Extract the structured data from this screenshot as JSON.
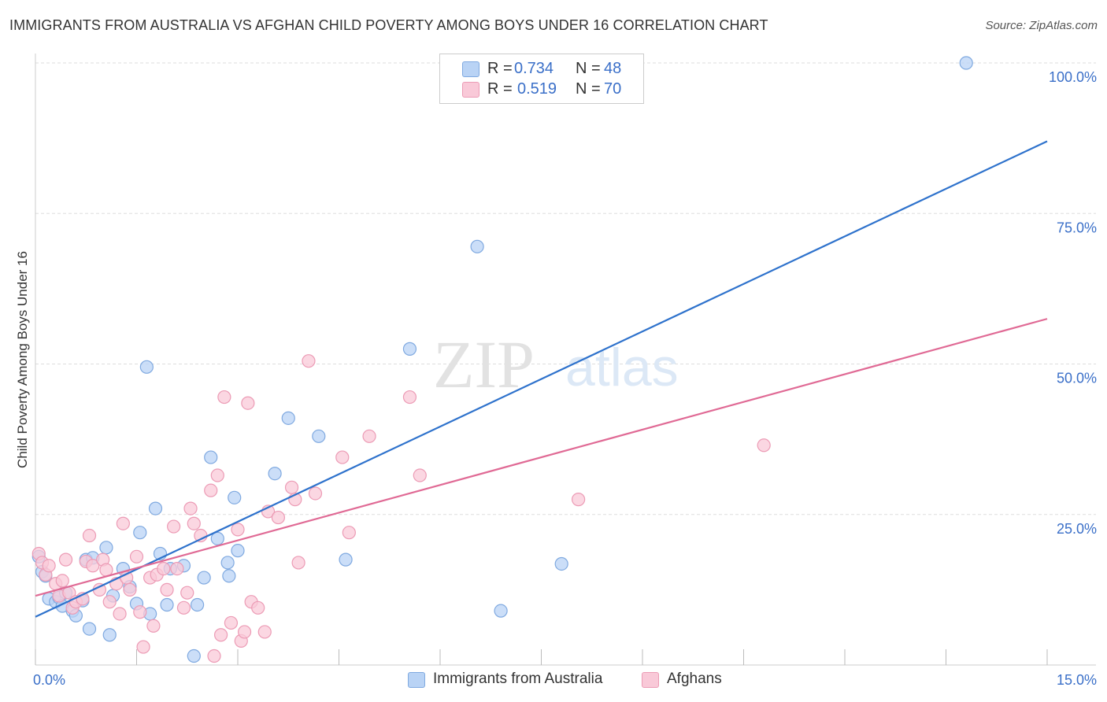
{
  "title": "IMMIGRANTS FROM AUSTRALIA VS AFGHAN CHILD POVERTY AMONG BOYS UNDER 16 CORRELATION CHART",
  "source": "Source: ZipAtlas.com",
  "watermark": {
    "zip": "ZIP",
    "atlas": "atlas"
  },
  "colors": {
    "blue_fill": "#b9d3f5",
    "blue_stroke": "#7fa9e0",
    "blue_line": "#2e72cc",
    "pink_fill": "#f9c9d8",
    "pink_stroke": "#ec9bb5",
    "pink_line": "#e06a95",
    "tick_label": "#3a6fc8",
    "grid": "#dddddd"
  },
  "legend": {
    "blue": {
      "r_label": "R = ",
      "r_value": "0.734",
      "n_label": "N = ",
      "n_value": "48"
    },
    "pink": {
      "r_label": "R = ",
      "r_value": "0.519",
      "n_label": "N = ",
      "n_value": "70"
    }
  },
  "chart_data": {
    "type": "scatter",
    "title": "IMMIGRANTS FROM AUSTRALIA VS AFGHAN CHILD POVERTY AMONG BOYS UNDER 16 CORRELATION CHART",
    "xlabel": "",
    "ylabel": "Child Poverty Among Boys Under 16",
    "xlim": [
      0,
      15
    ],
    "ylim": [
      0,
      100
    ],
    "x_tick_labels": [
      "0.0%",
      "15.0%"
    ],
    "y_tick_labels": [
      "25.0%",
      "50.0%",
      "75.0%",
      "100.0%"
    ],
    "y_ticks": [
      25,
      50,
      75,
      100
    ],
    "grid": true,
    "legend_position": "top-center",
    "series": [
      {
        "name": "Immigrants from Australia",
        "color": "blue",
        "trend": {
          "x": [
            0,
            15
          ],
          "y": [
            8.0,
            87.0
          ]
        },
        "points": [
          [
            0.05,
            18.0
          ],
          [
            0.1,
            15.5
          ],
          [
            0.15,
            14.8
          ],
          [
            0.2,
            11.0
          ],
          [
            0.3,
            10.5
          ],
          [
            0.35,
            11.2
          ],
          [
            0.4,
            9.8
          ],
          [
            0.45,
            12.0
          ],
          [
            0.55,
            9.0
          ],
          [
            0.6,
            8.2
          ],
          [
            0.7,
            10.7
          ],
          [
            0.75,
            17.5
          ],
          [
            0.8,
            6.0
          ],
          [
            0.85,
            17.8
          ],
          [
            1.05,
            19.5
          ],
          [
            1.1,
            5.0
          ],
          [
            1.15,
            11.5
          ],
          [
            1.3,
            16.0
          ],
          [
            1.4,
            13.0
          ],
          [
            1.5,
            10.2
          ],
          [
            1.55,
            22.0
          ],
          [
            1.65,
            49.5
          ],
          [
            1.7,
            8.5
          ],
          [
            1.78,
            26.0
          ],
          [
            1.85,
            18.5
          ],
          [
            1.95,
            10.0
          ],
          [
            2.0,
            16.0
          ],
          [
            2.2,
            16.5
          ],
          [
            2.35,
            1.5
          ],
          [
            2.4,
            10.0
          ],
          [
            2.5,
            14.5
          ],
          [
            2.6,
            34.5
          ],
          [
            2.7,
            21.0
          ],
          [
            2.85,
            17.0
          ],
          [
            2.87,
            14.8
          ],
          [
            2.95,
            27.8
          ],
          [
            3.0,
            19.0
          ],
          [
            3.55,
            31.8
          ],
          [
            3.75,
            41.0
          ],
          [
            4.2,
            38.0
          ],
          [
            4.6,
            17.5
          ],
          [
            5.55,
            52.5
          ],
          [
            6.55,
            69.5
          ],
          [
            6.9,
            9.0
          ],
          [
            7.8,
            16.8
          ],
          [
            13.8,
            100.0
          ]
        ]
      },
      {
        "name": "Afghans",
        "color": "pink",
        "trend": {
          "x": [
            0,
            15
          ],
          "y": [
            11.5,
            57.5
          ]
        },
        "points": [
          [
            0.05,
            18.5
          ],
          [
            0.1,
            17.0
          ],
          [
            0.15,
            15.0
          ],
          [
            0.2,
            16.5
          ],
          [
            0.3,
            13.5
          ],
          [
            0.35,
            11.5
          ],
          [
            0.4,
            14.0
          ],
          [
            0.45,
            17.5
          ],
          [
            0.5,
            12.0
          ],
          [
            0.55,
            9.5
          ],
          [
            0.6,
            10.5
          ],
          [
            0.7,
            11.0
          ],
          [
            0.75,
            17.2
          ],
          [
            0.8,
            21.5
          ],
          [
            0.85,
            16.5
          ],
          [
            0.95,
            12.5
          ],
          [
            1.0,
            17.5
          ],
          [
            1.05,
            15.8
          ],
          [
            1.1,
            10.5
          ],
          [
            1.2,
            13.5
          ],
          [
            1.25,
            8.5
          ],
          [
            1.3,
            23.5
          ],
          [
            1.35,
            14.5
          ],
          [
            1.4,
            12.5
          ],
          [
            1.5,
            18.0
          ],
          [
            1.55,
            8.8
          ],
          [
            1.6,
            3.0
          ],
          [
            1.7,
            14.5
          ],
          [
            1.75,
            6.5
          ],
          [
            1.8,
            15.0
          ],
          [
            1.9,
            16.0
          ],
          [
            1.95,
            12.5
          ],
          [
            2.05,
            23.0
          ],
          [
            2.1,
            16.0
          ],
          [
            2.2,
            9.5
          ],
          [
            2.25,
            12.0
          ],
          [
            2.3,
            26.0
          ],
          [
            2.35,
            23.5
          ],
          [
            2.45,
            21.5
          ],
          [
            2.6,
            29.0
          ],
          [
            2.65,
            1.5
          ],
          [
            2.7,
            31.5
          ],
          [
            2.75,
            5.0
          ],
          [
            2.8,
            44.5
          ],
          [
            2.9,
            7.0
          ],
          [
            3.0,
            22.5
          ],
          [
            3.05,
            4.0
          ],
          [
            3.1,
            5.5
          ],
          [
            3.15,
            43.5
          ],
          [
            3.2,
            10.5
          ],
          [
            3.3,
            9.5
          ],
          [
            3.4,
            5.5
          ],
          [
            3.45,
            25.5
          ],
          [
            3.6,
            24.5
          ],
          [
            3.8,
            29.5
          ],
          [
            3.85,
            27.5
          ],
          [
            3.9,
            17.0
          ],
          [
            4.05,
            50.5
          ],
          [
            4.15,
            28.5
          ],
          [
            4.55,
            34.5
          ],
          [
            4.65,
            22.0
          ],
          [
            4.95,
            38.0
          ],
          [
            5.55,
            44.5
          ],
          [
            5.7,
            31.5
          ],
          [
            8.05,
            27.5
          ],
          [
            10.8,
            36.5
          ]
        ]
      }
    ]
  }
}
